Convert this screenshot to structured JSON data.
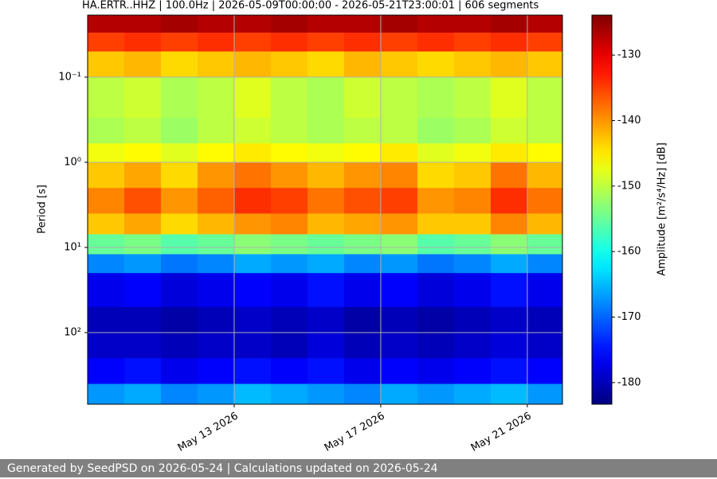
{
  "chart_data": {
    "type": "heatmap",
    "title": "HA.ERTR..HHZ | 100.0Hz | 2026-05-09T00:00:00 - 2026-05-21T23:00:01 | 606 segments",
    "ylabel": "Period [s]",
    "colorbar_label": "Amplitude [m²/s⁴/Hz] [dB]",
    "colormap": "jet",
    "y_scale": "log",
    "y_inverted": true,
    "grid": true,
    "xlim": [
      "2026-05-09T00:00:00",
      "2026-05-21T23:00:01"
    ],
    "xticks": [
      {
        "value": "2026-05-13T00:00:00",
        "label": "May 13 2026"
      },
      {
        "value": "2026-05-17T00:00:00",
        "label": "May 17 2026"
      },
      {
        "value": "2026-05-21T00:00:00",
        "label": "May 21 2026"
      }
    ],
    "ylim": [
      0.0187,
      693
    ],
    "yticks": [
      {
        "value": 0.1,
        "label": "10⁻¹"
      },
      {
        "value": 1,
        "label": "10⁰"
      },
      {
        "value": 10,
        "label": "10¹"
      },
      {
        "value": 100,
        "label": "10²"
      }
    ],
    "clim": [
      -183.3,
      -123.9
    ],
    "cticks": [
      -130,
      -140,
      -150,
      -160,
      -170,
      -180
    ],
    "x": [
      "2026-05-09T00:00:00",
      "2026-05-10T00:00:00",
      "2026-05-11T00:00:00",
      "2026-05-12T00:00:00",
      "2026-05-13T00:00:00",
      "2026-05-14T00:00:00",
      "2026-05-15T00:00:00",
      "2026-05-16T00:00:00",
      "2026-05-17T00:00:00",
      "2026-05-18T00:00:00",
      "2026-05-19T00:00:00",
      "2026-05-20T00:00:00",
      "2026-05-21T00:00:00"
    ],
    "y_bins": [
      0.0187,
      0.03,
      0.05,
      0.1,
      0.3,
      0.6,
      1,
      2,
      4,
      7,
      12,
      20,
      50,
      100,
      200,
      400,
      693
    ],
    "z": [
      [
        -127,
        -127,
        -126,
        -127,
        -127,
        -126,
        -127,
        -127,
        -126,
        -127,
        -127,
        -126,
        -127
      ],
      [
        -135,
        -134,
        -135,
        -134,
        -135,
        -134,
        -135,
        -134,
        -135,
        -134,
        -135,
        -134,
        -135
      ],
      [
        -143,
        -142,
        -144,
        -143,
        -142,
        -143,
        -144,
        -142,
        -143,
        -144,
        -143,
        -142,
        -143
      ],
      [
        -150,
        -149,
        -151,
        -150,
        -148,
        -150,
        -151,
        -149,
        -150,
        -151,
        -150,
        -148,
        -150
      ],
      [
        -151,
        -150,
        -152,
        -150,
        -149,
        -150,
        -151,
        -150,
        -150,
        -152,
        -151,
        -149,
        -150
      ],
      [
        -147,
        -146,
        -148,
        -146,
        -145,
        -146,
        -147,
        -146,
        -145,
        -148,
        -147,
        -145,
        -146
      ],
      [
        -143,
        -141,
        -144,
        -140,
        -138,
        -140,
        -142,
        -140,
        -139,
        -144,
        -143,
        -138,
        -142
      ],
      [
        -139,
        -136,
        -140,
        -137,
        -134,
        -135,
        -138,
        -136,
        -135,
        -140,
        -139,
        -134,
        -138
      ],
      [
        -143,
        -141,
        -144,
        -142,
        -140,
        -139,
        -142,
        -141,
        -140,
        -143,
        -143,
        -139,
        -142
      ],
      [
        -155,
        -154,
        -156,
        -155,
        -153,
        -154,
        -155,
        -154,
        -153,
        -156,
        -155,
        -153,
        -155
      ],
      [
        -168,
        -167,
        -169,
        -168,
        -166,
        -167,
        -166,
        -168,
        -167,
        -169,
        -168,
        -166,
        -168
      ],
      [
        -177,
        -176,
        -178,
        -177,
        -176,
        -177,
        -175,
        -177,
        -176,
        -178,
        -177,
        -175,
        -177
      ],
      [
        -180,
        -180,
        -181,
        -180,
        -179,
        -180,
        -179,
        -181,
        -180,
        -181,
        -180,
        -179,
        -180
      ],
      [
        -179,
        -179,
        -180,
        -179,
        -179,
        -180,
        -178,
        -180,
        -179,
        -180,
        -179,
        -178,
        -179
      ],
      [
        -176,
        -175,
        -177,
        -176,
        -175,
        -176,
        -175,
        -177,
        -176,
        -177,
        -176,
        -175,
        -176
      ],
      [
        -167,
        -166,
        -168,
        -167,
        -165,
        -166,
        -167,
        -168,
        -166,
        -167,
        -166,
        -165,
        -167
      ]
    ]
  },
  "footer": "Generated by SeedPSD on 2026-05-24 | Calculations updated on 2026-05-24"
}
